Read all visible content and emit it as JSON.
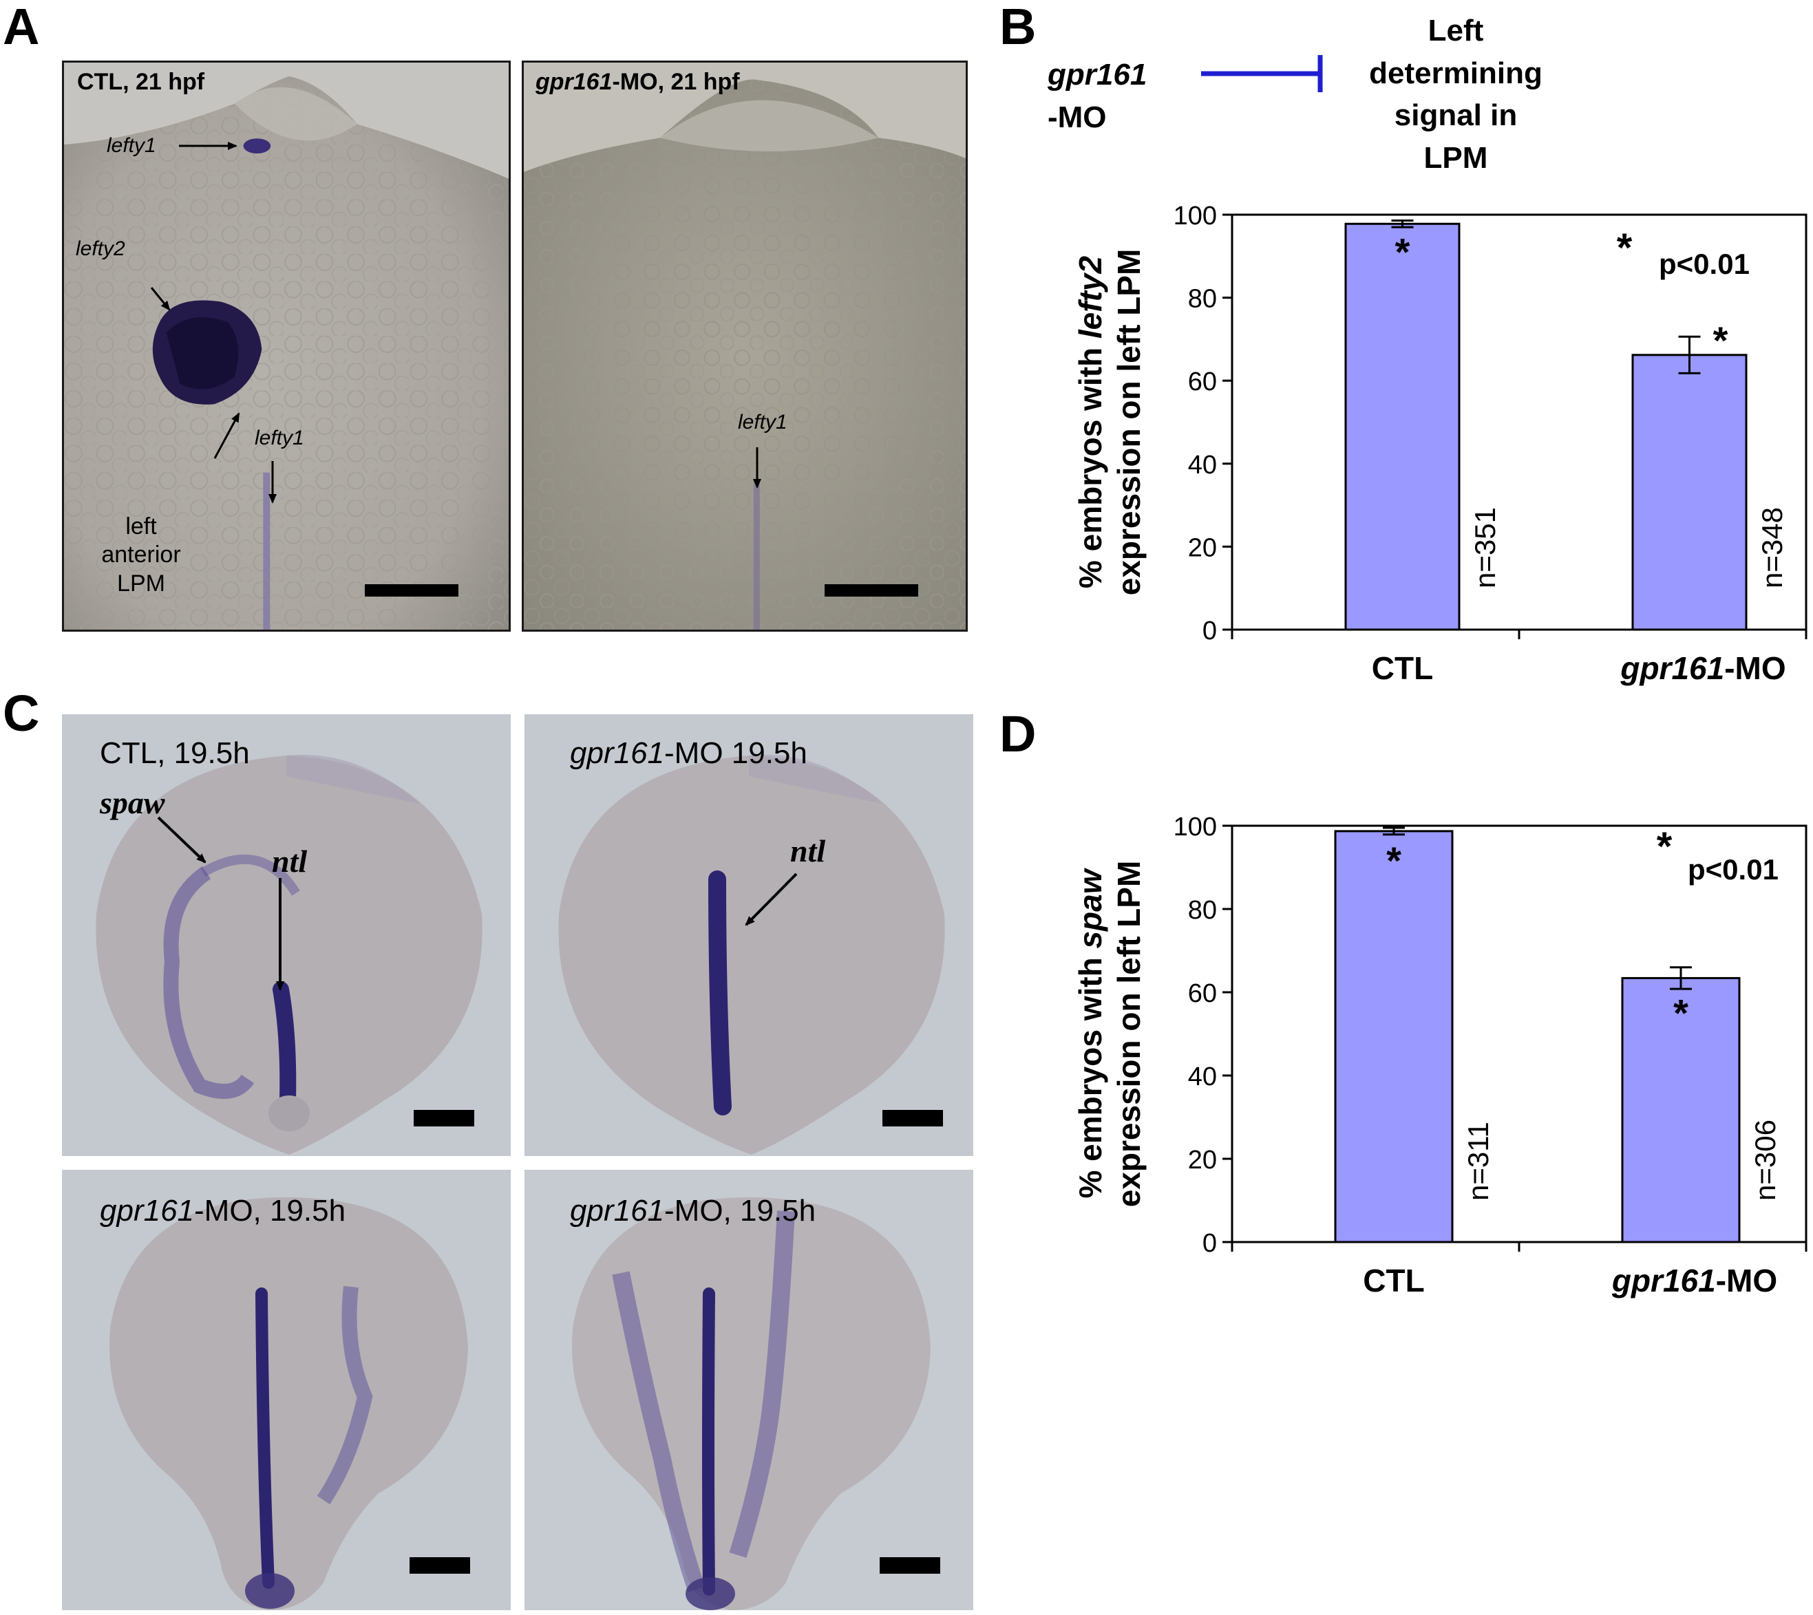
{
  "panels": {
    "A": {
      "letter": "A",
      "left_image": {
        "caption_prefix": "CTL, 21 hpf",
        "labels": {
          "lefty1_top": "lefty1",
          "lefty2": "lefty2",
          "lefty1_mid": "lefty1",
          "lpm_line1": "left",
          "lpm_line2": "anterior",
          "lpm_line3": "LPM"
        }
      },
      "right_image": {
        "caption_gene": "gpr161",
        "caption_rest": "-MO, 21 hpf",
        "labels": {
          "lefty1": "lefty1"
        }
      }
    },
    "B": {
      "letter": "B",
      "diagram": {
        "left_line1": "gpr161",
        "left_line2": "-MO",
        "right_lines": [
          "Left",
          "determining",
          "signal in",
          "LPM"
        ]
      }
    },
    "C": {
      "letter": "C",
      "top_left": {
        "caption": "CTL, 19.5h",
        "spaw": "spaw",
        "ntl": "ntl"
      },
      "top_right": {
        "caption_gene": "gpr161",
        "caption_rest": "-MO 19.5h",
        "ntl": "ntl"
      },
      "bottom_left": {
        "caption_gene": "gpr161",
        "caption_rest": "-MO, 19.5h"
      },
      "bottom_right": {
        "caption_gene": "gpr161",
        "caption_rest": "-MO, 19.5h"
      }
    },
    "D": {
      "letter": "D"
    }
  },
  "colors": {
    "bar_fill": "#9999ff",
    "bar_stroke": "#000000",
    "inhibit_line": "#1f1fd0"
  },
  "chart_data": [
    {
      "type": "bar",
      "panel": "B",
      "categories": [
        "CTL",
        "gpr161-MO"
      ],
      "category_gene_part": [
        "",
        "gpr161"
      ],
      "category_rest_part": [
        "CTL",
        "-MO"
      ],
      "values": [
        97.8,
        66.2
      ],
      "error": [
        0.8,
        4.4
      ],
      "n_labels": [
        "n=351",
        "n=348"
      ],
      "ylabel_line1_prefix": "% embryos with ",
      "ylabel_line1_gene": "lefty2",
      "ylabel_line2": "expression on left LPM",
      "ylim": [
        0,
        100
      ],
      "yticks": [
        0,
        20,
        40,
        60,
        80,
        100
      ],
      "significance": {
        "star": "*",
        "text": "p<0.01"
      }
    },
    {
      "type": "bar",
      "panel": "D",
      "categories": [
        "CTL",
        "gpr161-MO"
      ],
      "category_gene_part": [
        "",
        "gpr161"
      ],
      "category_rest_part": [
        "CTL",
        "-MO"
      ],
      "values": [
        98.7,
        63.4
      ],
      "error": [
        0.8,
        2.6
      ],
      "n_labels": [
        "n=311",
        "n=306"
      ],
      "ylabel_line1_prefix": "% embryos with ",
      "ylabel_line1_gene": "spaw",
      "ylabel_line2": "expression on left LPM",
      "ylim": [
        0,
        100
      ],
      "yticks": [
        0,
        20,
        40,
        60,
        80,
        100
      ],
      "significance": {
        "star": "*",
        "text": "p<0.01"
      }
    }
  ]
}
